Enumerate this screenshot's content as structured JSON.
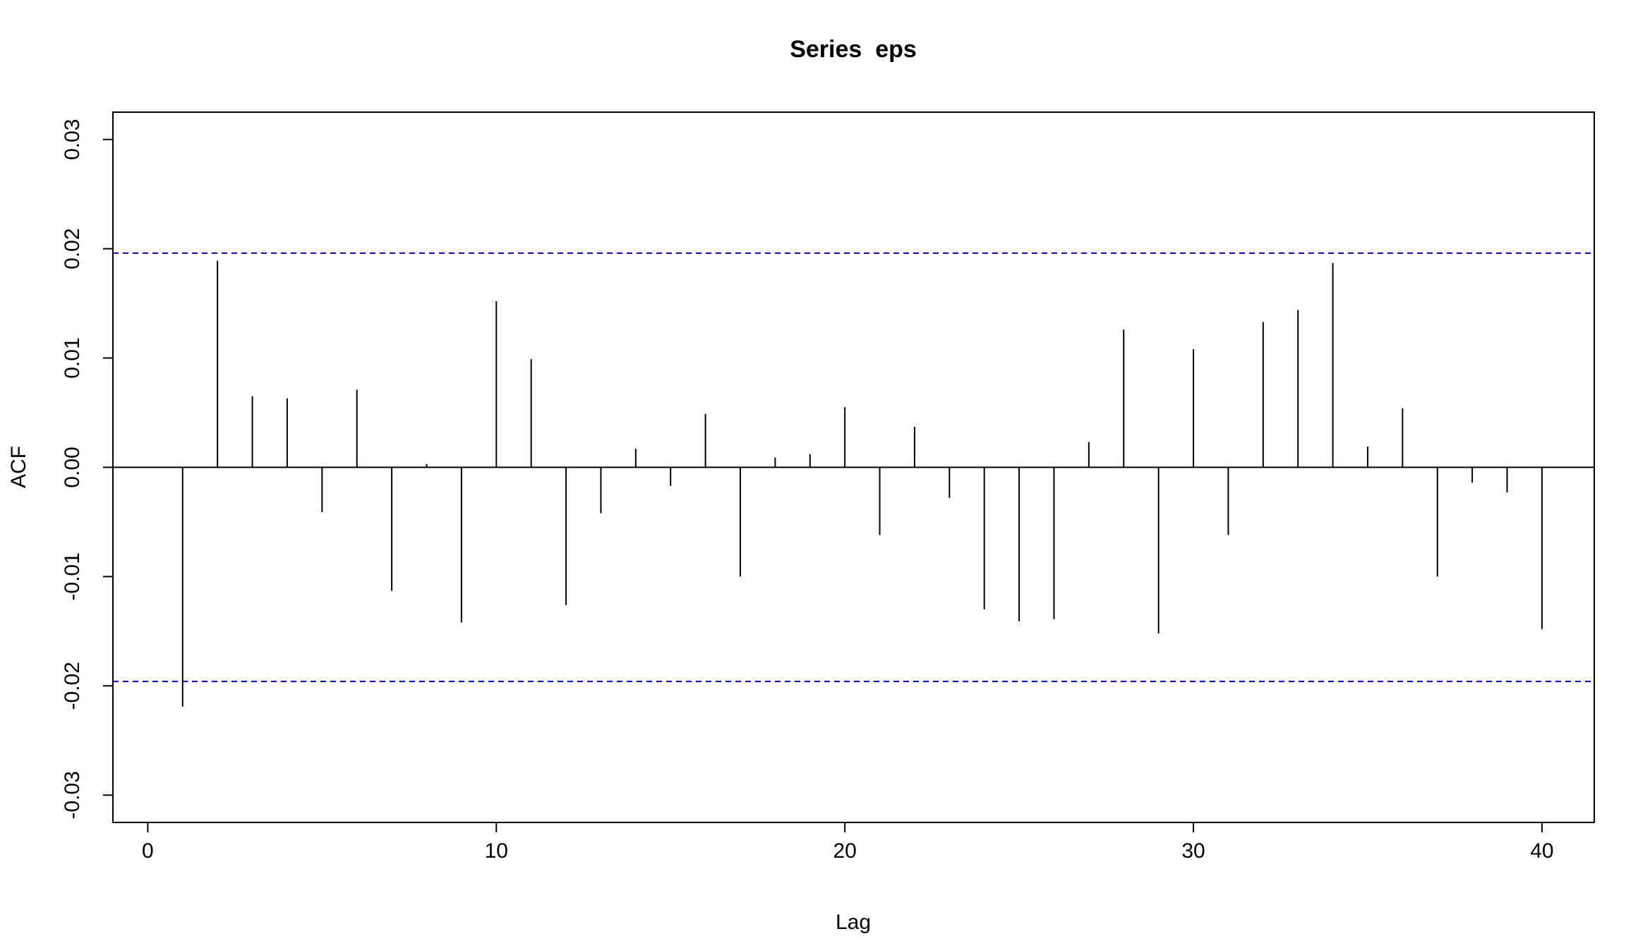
{
  "chart_data": {
    "type": "bar",
    "title": "Series  eps",
    "xlabel": "Lag",
    "ylabel": "ACF",
    "xlim": [
      -1,
      41.5
    ],
    "ylim": [
      -0.0325,
      0.0325
    ],
    "x_ticks": [
      0,
      10,
      20,
      30,
      40
    ],
    "x_tick_labels": [
      "0",
      "10",
      "20",
      "30",
      "40"
    ],
    "y_ticks": [
      -0.03,
      -0.02,
      -0.01,
      0.0,
      0.01,
      0.02,
      0.03
    ],
    "y_tick_labels": [
      "-0.03",
      "-0.02",
      "-0.01",
      "0.00",
      "0.01",
      "0.02",
      "0.03"
    ],
    "lags": [
      1,
      2,
      3,
      4,
      5,
      6,
      7,
      8,
      9,
      10,
      11,
      12,
      13,
      14,
      15,
      16,
      17,
      18,
      19,
      20,
      21,
      22,
      23,
      24,
      25,
      26,
      27,
      28,
      29,
      30,
      31,
      32,
      33,
      34,
      35,
      36,
      37,
      38,
      39,
      40
    ],
    "values": [
      -0.0219,
      0.0189,
      0.0065,
      0.0063,
      -0.0041,
      0.0071,
      -0.0113,
      0.0003,
      -0.0142,
      0.0152,
      0.0099,
      -0.0126,
      -0.0042,
      0.0017,
      -0.0017,
      0.0049,
      -0.01,
      0.0009,
      0.0012,
      0.0055,
      -0.0062,
      0.0037,
      -0.0028,
      -0.013,
      -0.0141,
      -0.0139,
      0.0023,
      0.0126,
      -0.0152,
      0.0108,
      -0.0062,
      0.0133,
      0.0144,
      0.0187,
      0.0019,
      0.0054,
      -0.01,
      -0.0014,
      -0.0023,
      -0.0148
    ],
    "ci_upper": 0.0196,
    "ci_lower": -0.0196,
    "grid": false,
    "colors": {
      "bars": "#000000",
      "ci_lines": "#0000CD",
      "axes": "#000000"
    }
  }
}
